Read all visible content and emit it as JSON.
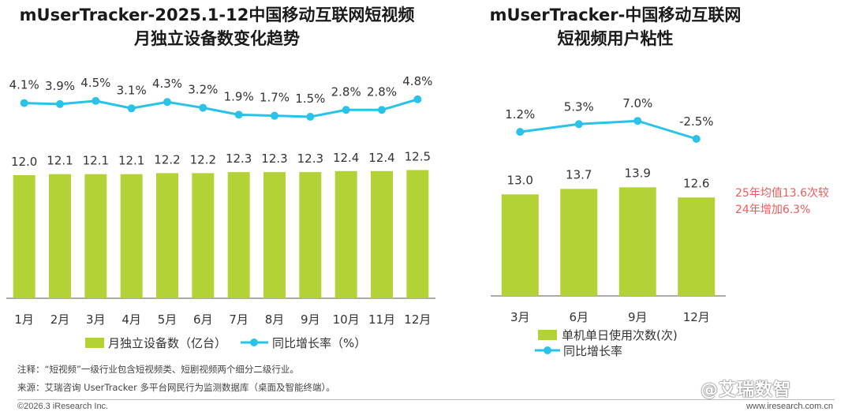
{
  "left_title_line1": "mUserTracker-2025.1-12中国移动互联网短视频",
  "left_title_line2": "月独立设备数变化趋势",
  "right_title_line1": "mUserTracker-中国移动互联网",
  "right_title_line2": "短视频用户粘性",
  "colors": {
    "bar": "#b3d236",
    "line": "#29c3ea",
    "callout": "#f05a5a",
    "axis": "#555555"
  },
  "chart_data": [
    {
      "type": "bar",
      "categories": [
        "1月",
        "2月",
        "3月",
        "4月",
        "5月",
        "6月",
        "7月",
        "8月",
        "9月",
        "10月",
        "11月",
        "12月"
      ],
      "series": [
        {
          "name": "月独立设备数（亿台）",
          "values": [
            12.0,
            12.1,
            12.1,
            12.1,
            12.2,
            12.2,
            12.3,
            12.3,
            12.3,
            12.4,
            12.4,
            12.5
          ],
          "labels": [
            "12.0",
            "12.1",
            "12.1",
            "12.1",
            "12.2",
            "12.2",
            "12.3",
            "12.3",
            "12.3",
            "12.4",
            "12.4",
            "12.5"
          ]
        },
        {
          "name": "同比增长率（%）",
          "type": "line",
          "values": [
            4.1,
            3.9,
            4.5,
            3.1,
            4.3,
            3.2,
            1.9,
            1.7,
            1.5,
            2.8,
            2.8,
            4.8
          ],
          "labels": [
            "4.1%",
            "3.9%",
            "4.5%",
            "3.1%",
            "4.3%",
            "3.2%",
            "1.9%",
            "1.7%",
            "1.5%",
            "2.8%",
            "2.8%",
            "4.8%"
          ]
        }
      ],
      "legend": "bottom"
    },
    {
      "type": "bar",
      "categories": [
        "3月",
        "6月",
        "9月",
        "12月"
      ],
      "series": [
        {
          "name": "单机单日使用次数(次)",
          "values": [
            13.0,
            13.7,
            13.9,
            12.6
          ],
          "labels": [
            "13.0",
            "13.7",
            "13.9",
            "12.6"
          ]
        },
        {
          "name": "同比增长率",
          "type": "line",
          "values": [
            1.2,
            5.3,
            7.0,
            -2.5
          ],
          "labels": [
            "1.2%",
            "5.3%",
            "7.0%",
            "-2.5%"
          ]
        }
      ],
      "annotations": [
        "25年均值13.6次较",
        "24年增加6.3%"
      ],
      "legend": "bottom"
    }
  ],
  "notes": [
    "注释：“短视频”一级行业包含短视频类、短剧视频两个细分二级行业。",
    "来源：艾瑞咨询 UserTracker 多平台网民行为监测数据库（桌面及智能终端）。"
  ],
  "footer_left": "©2026.3 iResearch Inc.",
  "footer_right": "www.iresearch.com.cn",
  "watermark": "@艾瑞数智"
}
